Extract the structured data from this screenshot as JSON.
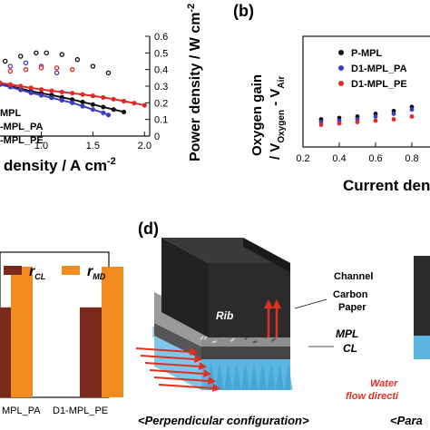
{
  "panel_labels": {
    "b": "(b)",
    "d": "(d)"
  },
  "chart_data": [
    {
      "type": "scatter",
      "panel": "a",
      "xlabel_visible": "density / A cm",
      "xlabel_sup": "-2",
      "y2label": "Power density / W cm",
      "y2label_sup": "-2",
      "xlim": [
        0.6,
        2.05
      ],
      "y2lim": [
        0,
        0.6
      ],
      "x_ticks": [
        "1.0",
        "1.5",
        "2.0"
      ],
      "y2_ticks": [
        "0",
        "0.1",
        "0.2",
        "0.3",
        "0.4",
        "0.5",
        "0.6"
      ],
      "legend": [
        "MPL",
        "-MPL_PA",
        "-MPL_PE"
      ],
      "series": [
        {
          "name": "MPL",
          "color": "#111111",
          "kind": "power",
          "x": [
            0.65,
            0.8,
            0.95,
            1.05,
            1.2,
            1.35,
            1.5,
            1.65
          ],
          "y": [
            0.45,
            0.48,
            0.5,
            0.5,
            0.49,
            0.46,
            0.42,
            0.38
          ]
        },
        {
          "name": "-MPL_PA",
          "color": "#3b3fbf",
          "kind": "power",
          "x": [
            0.7,
            0.85,
            1.0,
            1.15
          ],
          "y": [
            0.42,
            0.44,
            0.42,
            0.38
          ]
        },
        {
          "name": "-MPL_PE",
          "color": "#e02a2a",
          "kind": "power",
          "x": [
            0.7,
            0.85,
            1.0,
            1.15,
            1.3
          ],
          "y": [
            0.39,
            0.4,
            0.41,
            0.41,
            0.4
          ]
        },
        {
          "name": "MPL",
          "color": "#111111",
          "kind": "voltage",
          "x": [
            0.6,
            0.7,
            0.8,
            0.9,
            1.0,
            1.1,
            1.2,
            1.3,
            1.4,
            1.5,
            1.6,
            1.7,
            1.8
          ],
          "y": [
            0.315,
            0.3,
            0.285,
            0.27,
            0.258,
            0.246,
            0.233,
            0.22,
            0.205,
            0.19,
            0.175,
            0.16,
            0.145
          ]
        },
        {
          "name": "-MPL_PA",
          "color": "#3b3fbf",
          "kind": "voltage",
          "x": [
            0.6,
            0.7,
            0.8,
            0.9,
            1.0,
            1.1,
            1.2,
            1.3,
            1.4,
            1.5,
            1.6,
            1.65
          ],
          "y": [
            0.31,
            0.295,
            0.278,
            0.26,
            0.245,
            0.23,
            0.215,
            0.2,
            0.18,
            0.16,
            0.14,
            0.127
          ]
        },
        {
          "name": "-MPL_PE",
          "color": "#e02a2a",
          "kind": "voltage",
          "x": [
            0.6,
            0.7,
            0.8,
            0.9,
            1.0,
            1.1,
            1.2,
            1.3,
            1.4,
            1.5,
            1.6,
            1.7,
            1.8,
            1.9,
            2.0
          ],
          "y": [
            0.32,
            0.31,
            0.3,
            0.29,
            0.28,
            0.272,
            0.265,
            0.258,
            0.25,
            0.242,
            0.232,
            0.222,
            0.21,
            0.198,
            0.185
          ]
        }
      ]
    },
    {
      "type": "scatter",
      "panel": "b",
      "xlabel_visible": "Current den",
      "ylabel": "Oxygen gain",
      "ylabel2": "/ V",
      "ylabel2_sub1": "Oxygen",
      "ylabel2_mid": " - V",
      "ylabel2_sub2": "Air",
      "xlim": [
        0.2,
        0.95
      ],
      "ylim": [
        0,
        0.4
      ],
      "x_ticks": [
        "0.2",
        "0.4",
        "0.6",
        "0.8"
      ],
      "legend": [
        "P-MPL",
        "D1-MPL_PA",
        "D1-MPL_PE"
      ],
      "series": [
        {
          "name": "P-MPL",
          "color": "#111111",
          "x": [
            0.3,
            0.4,
            0.5,
            0.6,
            0.7,
            0.8,
            0.9,
            0.95
          ],
          "y": [
            0.1,
            0.105,
            0.11,
            0.12,
            0.13,
            0.145,
            0.16,
            0.18
          ]
        },
        {
          "name": "D1-MPL_PA",
          "color": "#3b3fbf",
          "x": [
            0.3,
            0.4,
            0.5,
            0.6,
            0.7,
            0.8,
            0.9
          ],
          "y": [
            0.09,
            0.095,
            0.1,
            0.11,
            0.12,
            0.135,
            0.15
          ]
        },
        {
          "name": "D1-MPL_PE",
          "color": "#e02a2a",
          "x": [
            0.3,
            0.4,
            0.5,
            0.6,
            0.7,
            0.8,
            0.9
          ],
          "y": [
            0.08,
            0.085,
            0.09,
            0.095,
            0.1,
            0.11,
            0.12
          ]
        }
      ]
    },
    {
      "type": "bar",
      "panel": "c",
      "categories": [
        "MPL_PA",
        "D1-MPL_PE"
      ],
      "legend_labels": [
        {
          "sym": "r",
          "sub": "CL",
          "color": "#7a2a1a"
        },
        {
          "sym": "r",
          "sub": "MD",
          "color": "#f28c1e"
        }
      ],
      "series": [
        {
          "name": "rCL",
          "color": "#7a2a1a",
          "values": [
            0.62,
            0.62
          ]
        },
        {
          "name": "rMD",
          "color": "#f28c1e",
          "values": [
            0.9,
            0.9
          ]
        }
      ],
      "ylim": [
        0,
        1
      ]
    }
  ],
  "diagram": {
    "labels": {
      "channel": "Channel",
      "carbon_paper_1": "Carbon",
      "carbon_paper_2": "Paper",
      "mpl": "MPL",
      "cl": "CL",
      "rib": "Rib",
      "water_1": "Water",
      "water_2": "flow directi",
      "caption_left": "<Perpendicular configuration>",
      "caption_right": "<Para"
    },
    "colors": {
      "rib": "#2b2b2b",
      "paper": "#8a8a8a",
      "mpl": "#6a6a6a",
      "cl": "#7fc8ea",
      "arrow": "#e03020"
    }
  }
}
